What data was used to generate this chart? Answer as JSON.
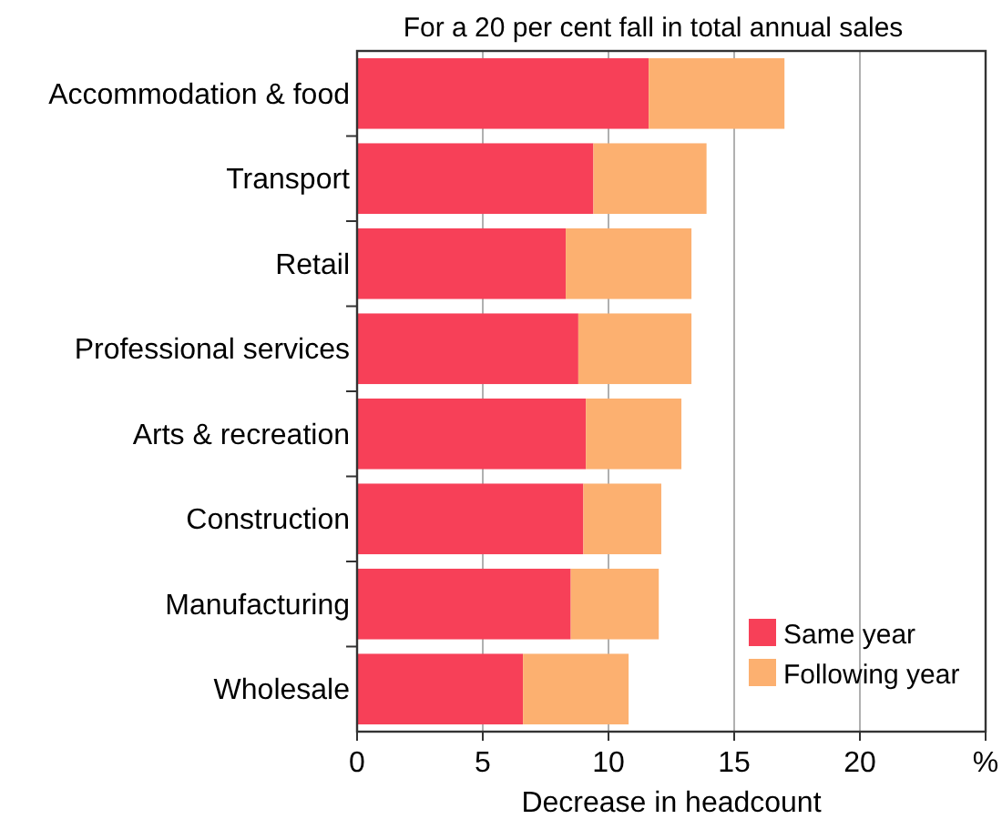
{
  "chart_data": {
    "type": "bar",
    "orientation": "horizontal",
    "stacked": true,
    "subtitle": "For a 20 per cent fall in total annual sales",
    "xlabel": "Decrease in headcount",
    "categories": [
      "Accommodation & food",
      "Transport",
      "Retail",
      "Professional services",
      "Arts & recreation",
      "Construction",
      "Manufacturing",
      "Wholesale"
    ],
    "series": [
      {
        "name": "Same year",
        "color": "#f74058",
        "values": [
          11.6,
          9.4,
          8.3,
          8.8,
          9.1,
          9.0,
          8.5,
          6.6
        ]
      },
      {
        "name": "Following year",
        "color": "#fcb070",
        "values": [
          5.4,
          4.5,
          5.0,
          4.5,
          3.8,
          3.1,
          3.5,
          4.2
        ]
      }
    ],
    "xlim": [
      0,
      25
    ],
    "xticks": [
      0,
      5,
      10,
      15,
      20,
      {
        "value": 25,
        "label": "%"
      }
    ],
    "grid": "x",
    "legend": "bottom right"
  }
}
